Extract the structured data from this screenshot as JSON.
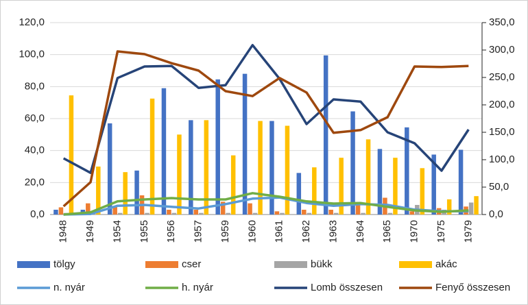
{
  "chart_data": {
    "type": "bar",
    "categories": [
      "1948",
      "1949",
      "1954",
      "1955",
      "1956",
      "1957",
      "1959",
      "1960",
      "1961",
      "1962",
      "1963",
      "1964",
      "1965",
      "1970",
      "1975",
      "1979"
    ],
    "series": [
      {
        "name": "tölgy",
        "type": "bar",
        "color": "#4472c4",
        "values": [
          3,
          3,
          57,
          27.5,
          79,
          59,
          84.5,
          88,
          58.5,
          26,
          99.5,
          64.5,
          41,
          54.5,
          37.5,
          40.5
        ]
      },
      {
        "name": "cser",
        "type": "bar",
        "color": "#ed7d31",
        "values": [
          4.5,
          7,
          5,
          12,
          3,
          3,
          8,
          7,
          2,
          3,
          3,
          6,
          10.5,
          2,
          4,
          5
        ]
      },
      {
        "name": "bükk",
        "type": "bar",
        "color": "#a5a5a5",
        "values": [
          1,
          1,
          1,
          1,
          1,
          1,
          1,
          1,
          1,
          1,
          1,
          1,
          1,
          6,
          3,
          7.5
        ]
      },
      {
        "name": "akác",
        "type": "bar",
        "color": "#ffc000",
        "values": [
          74.5,
          30,
          26.5,
          72.5,
          50,
          59,
          37,
          58.5,
          55.5,
          29.5,
          35.5,
          47,
          35.5,
          29,
          9.5,
          11.5
        ]
      },
      {
        "name": "n. nyár",
        "type": "line",
        "axis": "y2",
        "color": "#5b9bd5",
        "values": [
          0,
          1,
          16,
          17.5,
          14,
          11,
          19,
          29,
          31,
          21,
          16,
          19,
          17.5,
          9,
          6,
          6
        ]
      },
      {
        "name": "h. nyár",
        "type": "line",
        "axis": "y2",
        "color": "#70ad47",
        "values": [
          0,
          4,
          24,
          27.5,
          30,
          27.5,
          27.5,
          39,
          32.5,
          24,
          20,
          21,
          14,
          7.5,
          5,
          7.5
        ]
      },
      {
        "name": "Lomb összesen",
        "type": "line",
        "axis": "y2",
        "color": "#264478",
        "values": [
          102.5,
          76,
          249,
          270,
          271,
          231,
          236,
          309,
          247.5,
          165,
          210,
          206,
          150,
          130,
          80,
          155
        ]
      },
      {
        "name": "Fenyő összesen",
        "type": "line",
        "axis": "y2",
        "color": "#9e480e",
        "values": [
          15,
          59,
          297.5,
          292.5,
          276,
          262.5,
          225,
          216,
          249,
          222.5,
          149,
          154,
          177.5,
          270,
          269,
          271
        ]
      }
    ],
    "ylim": [
      0,
      120
    ],
    "yticks": [
      {
        "value": 0,
        "label": "0,0"
      },
      {
        "value": 20,
        "label": "20,0"
      },
      {
        "value": 40,
        "label": "40,0"
      },
      {
        "value": 60,
        "label": "60,0"
      },
      {
        "value": 80,
        "label": "80,0"
      },
      {
        "value": 100,
        "label": "100,0"
      },
      {
        "value": 120,
        "label": "120,0"
      }
    ],
    "y2lim": [
      0,
      350
    ],
    "y2ticks": [
      {
        "value": 0,
        "label": "0,0"
      },
      {
        "value": 50,
        "label": "50,0"
      },
      {
        "value": 100,
        "label": "100,0"
      },
      {
        "value": 150,
        "label": "150,0"
      },
      {
        "value": 200,
        "label": "200,0"
      },
      {
        "value": 250,
        "label": "250,0"
      },
      {
        "value": 300,
        "label": "300,0"
      },
      {
        "value": 350,
        "label": "350,0"
      }
    ],
    "grid": true,
    "legend": "bottom"
  }
}
